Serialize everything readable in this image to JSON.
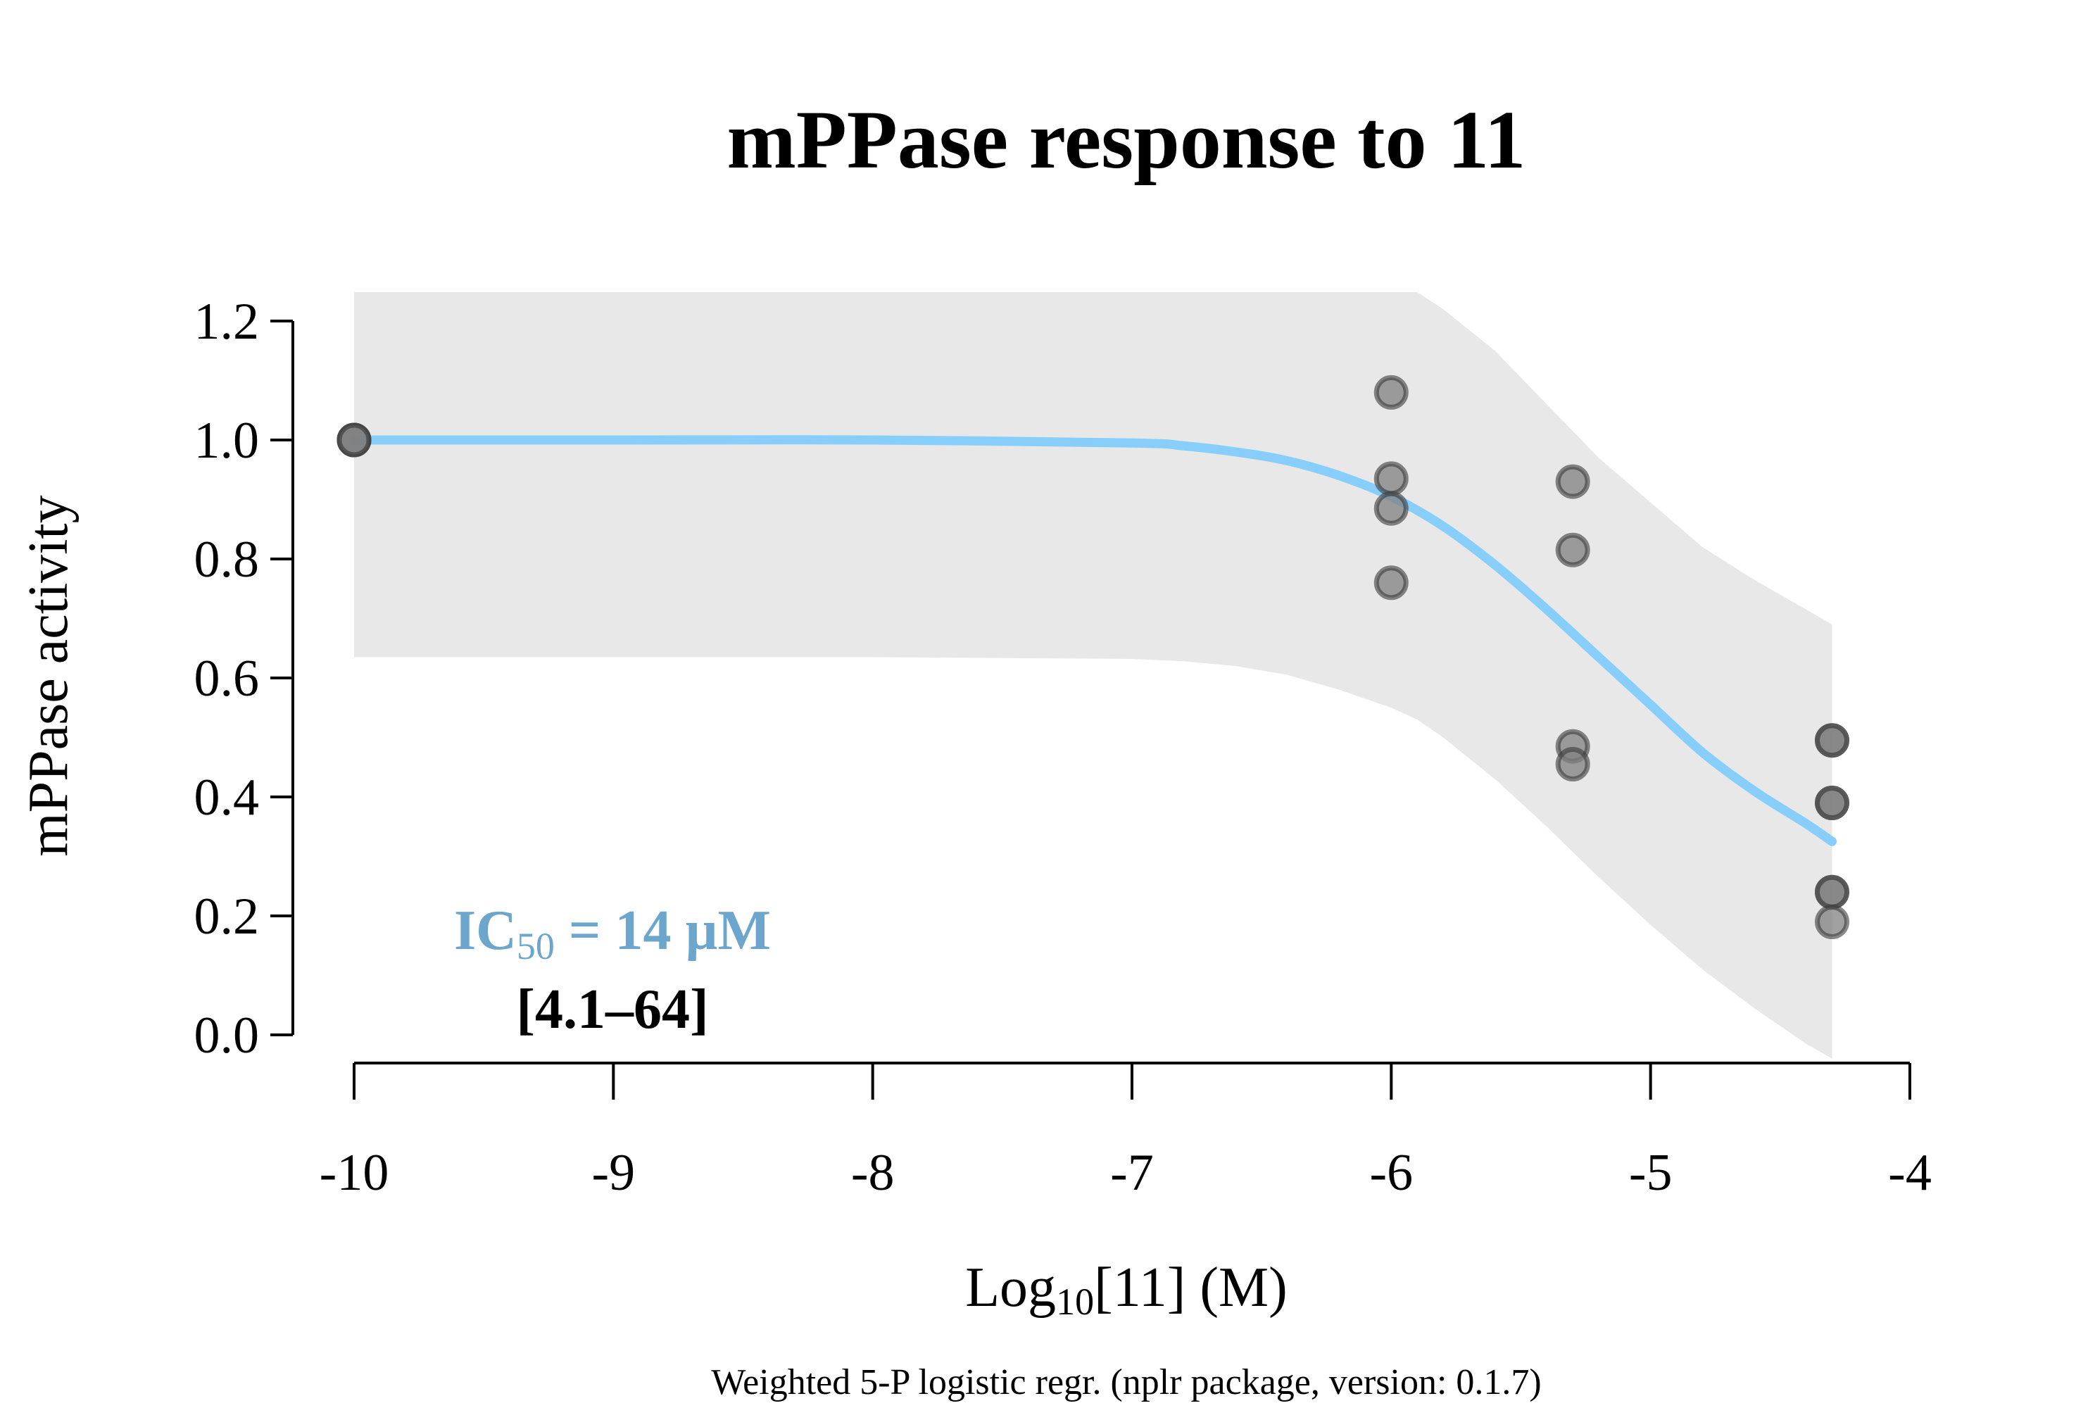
{
  "chart_data": {
    "type": "scatter",
    "title": "mPPase response to 11",
    "xlabel": {
      "main": "Log",
      "sub": "10",
      "rest": "[11] (M)"
    },
    "ylabel": "mPPase activity",
    "footnote": "Weighted 5-P logistic regr. (nplr package, version: 0.1.7)",
    "xlim": [
      -10,
      -4
    ],
    "ylim": [
      0,
      1.2
    ],
    "x_ticks": [
      -10,
      -9,
      -8,
      -7,
      -6,
      -5,
      -4
    ],
    "x_tick_labels": [
      "-10",
      "-9",
      "-8",
      "-7",
      "-6",
      "-5",
      "-4"
    ],
    "y_ticks": [
      0,
      0.2,
      0.4,
      0.6,
      0.8,
      1.0,
      1.2
    ],
    "y_tick_labels": [
      "0.0",
      "0.2",
      "0.4",
      "0.6",
      "0.8",
      "1.0",
      "1.2"
    ],
    "grid": false,
    "colors": {
      "curve": "#87CEFA",
      "band": "#E8E8E8",
      "point_fill": "#808080",
      "point_stroke": "#3a3a3a",
      "annotation": "#6CA6CD"
    },
    "annotation": {
      "line1_main": "IC",
      "line1_sub": "50",
      "line1_rest": " = 14 µM",
      "line2": "[4.1–64]"
    },
    "points": [
      {
        "x": -10,
        "y": 1.0
      },
      {
        "x": -10,
        "y": 1.0
      },
      {
        "x": -10,
        "y": 1.0
      },
      {
        "x": -6,
        "y": 1.08
      },
      {
        "x": -6,
        "y": 0.935
      },
      {
        "x": -6,
        "y": 0.885
      },
      {
        "x": -6,
        "y": 0.76
      },
      {
        "x": -5.3,
        "y": 0.93
      },
      {
        "x": -5.3,
        "y": 0.815
      },
      {
        "x": -5.3,
        "y": 0.485
      },
      {
        "x": -5.3,
        "y": 0.455
      },
      {
        "x": -4.3,
        "y": 0.495
      },
      {
        "x": -4.3,
        "y": 0.495
      },
      {
        "x": -4.3,
        "y": 0.39
      },
      {
        "x": -4.3,
        "y": 0.39
      },
      {
        "x": -4.3,
        "y": 0.24
      },
      {
        "x": -4.3,
        "y": 0.24
      },
      {
        "x": -4.3,
        "y": 0.19
      }
    ],
    "fit_curve": {
      "x": [
        -10,
        -9,
        -8,
        -7,
        -6.8,
        -6.6,
        -6.4,
        -6.2,
        -6.0,
        -5.8,
        -5.6,
        -5.4,
        -5.2,
        -5.0,
        -4.8,
        -4.6,
        -4.4,
        -4.3
      ],
      "y": [
        1.0,
        1.0,
        1.0,
        0.995,
        0.99,
        0.98,
        0.965,
        0.94,
        0.905,
        0.855,
        0.79,
        0.715,
        0.635,
        0.555,
        0.475,
        0.41,
        0.355,
        0.325
      ]
    },
    "confidence_band": {
      "x": [
        -10,
        -9,
        -8,
        -7,
        -6.8,
        -6.6,
        -6.4,
        -6.2,
        -6.0,
        -5.9,
        -5.8,
        -5.6,
        -5.4,
        -5.2,
        -5.0,
        -4.8,
        -4.6,
        -4.4,
        -4.3
      ],
      "upper": [
        1.25,
        1.25,
        1.25,
        1.25,
        1.25,
        1.25,
        1.25,
        1.25,
        1.25,
        1.25,
        1.22,
        1.15,
        1.06,
        0.97,
        0.895,
        0.82,
        0.765,
        0.715,
        0.69
      ],
      "lower": [
        0.635,
        0.635,
        0.635,
        0.632,
        0.628,
        0.62,
        0.605,
        0.58,
        0.55,
        0.53,
        0.5,
        0.43,
        0.35,
        0.265,
        0.185,
        0.11,
        0.045,
        -0.015,
        -0.04
      ]
    }
  }
}
